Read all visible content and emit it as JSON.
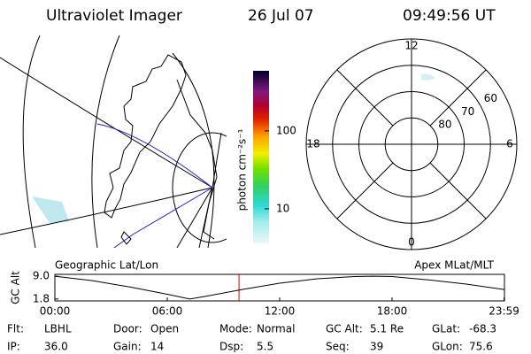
{
  "header": {
    "title": "Ultraviolet Imager",
    "date": "26 Jul 07",
    "time": "09:49:56 UT"
  },
  "map": {
    "label": "Geographic Lat/Lon"
  },
  "colorbar": {
    "label": "photon cm⁻²s⁻¹",
    "scale": "log",
    "range": [
      3.6,
      590
    ],
    "ticks": [
      10,
      100
    ]
  },
  "polar": {
    "label": "Apex MLat/MLT",
    "lat_range": [
      50,
      90
    ],
    "lat_rings": [
      60,
      70,
      80
    ],
    "mlt_ticks": [
      0,
      6,
      12,
      18
    ]
  },
  "altitude_plot": {
    "ylabel": "GC Alt",
    "color": "#000000",
    "marker_color": "#e00000",
    "ylim": [
      1.2,
      9.6
    ],
    "yticks": [
      {
        "value": 1.8,
        "label": "1.8"
      },
      {
        "value": 9,
        "label": "9.0"
      }
    ],
    "xlim": [
      0,
      24
    ],
    "xticks": [
      {
        "value": 0,
        "label": "00:00"
      },
      {
        "value": 6,
        "label": "06:00"
      },
      {
        "value": 12,
        "label": "12:00"
      },
      {
        "value": 18,
        "label": "18:00"
      },
      {
        "value": 23.98,
        "label": "23:59"
      }
    ],
    "x": [
      0,
      2,
      4,
      6,
      7.2,
      8,
      10,
      12,
      14,
      16,
      17,
      18,
      20,
      22,
      23.98
    ],
    "values": [
      9.0,
      7.6,
      5.6,
      3.3,
      1.8,
      2.6,
      4.8,
      6.8,
      8.2,
      8.9,
      9.0,
      8.9,
      7.8,
      6.5,
      4.8
    ],
    "marker_x": 9.83
  },
  "status": [
    [
      {
        "label": "Flt:",
        "value": "LBHL"
      },
      {
        "label": "Door:",
        "value": "Open"
      },
      {
        "label": "Mode:",
        "value": "Normal"
      },
      {
        "label": "GC Alt:",
        "value": "5.1 Re"
      },
      {
        "label": "GLat:",
        "value": "-68.3"
      }
    ],
    [
      {
        "label": "IP:",
        "value": "36.0"
      },
      {
        "label": "Gain:",
        "value": "14"
      },
      {
        "label": "Dsp:",
        "value": "5.5"
      },
      {
        "label": "Seq:",
        "value": "39"
      },
      {
        "label": "GLon:",
        "value": "75.6"
      }
    ]
  ]
}
